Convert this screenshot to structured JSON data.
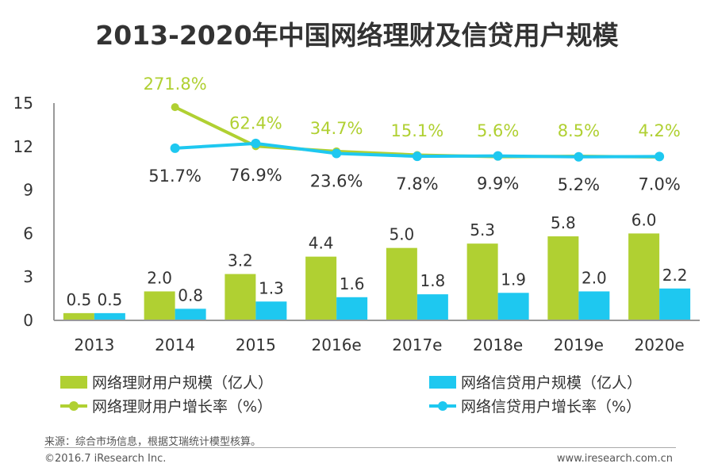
{
  "chart_data": {
    "type": "bar",
    "title": "2013-2020年中国网络理财及信贷用户规模",
    "categories": [
      "2013",
      "2014",
      "2015",
      "2016e",
      "2017e",
      "2018e",
      "2019e",
      "2020e"
    ],
    "ylim": [
      0,
      15
    ],
    "yticks": [
      "0",
      "3",
      "6",
      "9",
      "12",
      "15"
    ],
    "grid": false,
    "legend_position": "bottom",
    "series": [
      {
        "name": "网络理财用户规模（亿人）",
        "kind": "bar",
        "color": "#b0d032",
        "values": [
          0.5,
          2.0,
          3.2,
          4.4,
          5.0,
          5.3,
          5.8,
          6.0
        ],
        "labels": [
          "0.5",
          "2.0",
          "3.2",
          "4.4",
          "5.0",
          "5.3",
          "5.8",
          "6.0"
        ]
      },
      {
        "name": "网络信贷用户规模（亿人）",
        "kind": "bar",
        "color": "#1ec8f0",
        "values": [
          0.5,
          0.8,
          1.3,
          1.6,
          1.8,
          1.9,
          2.0,
          2.2
        ],
        "labels": [
          "0.5",
          "0.8",
          "1.3",
          "1.6",
          "1.8",
          "1.9",
          "2.0",
          "2.2"
        ]
      },
      {
        "name": "网络理财用户增长率（%）",
        "kind": "line",
        "axis": "secondary-hidden",
        "color": "#b0d032",
        "values": [
          null,
          271.8,
          62.4,
          34.7,
          15.1,
          5.6,
          8.5,
          4.2
        ],
        "labels": [
          "",
          "271.8%",
          "62.4%",
          "34.7%",
          "15.1%",
          "5.6%",
          "8.5%",
          "4.2%"
        ]
      },
      {
        "name": "网络信贷用户增长率（%）",
        "kind": "line",
        "axis": "secondary-hidden",
        "color": "#1ec8f0",
        "values": [
          null,
          51.7,
          76.9,
          23.6,
          7.8,
          9.9,
          5.2,
          7.0
        ],
        "labels": [
          "",
          "51.7%",
          "76.9%",
          "23.6%",
          "7.8%",
          "9.9%",
          "5.2%",
          "7.0%"
        ]
      }
    ]
  },
  "footer": {
    "source": "来源：综合市场信息，根据艾瑞统计模型核算。",
    "copyright": "©2016.7 iResearch Inc.",
    "website": "www.iresearch.com.cn"
  }
}
